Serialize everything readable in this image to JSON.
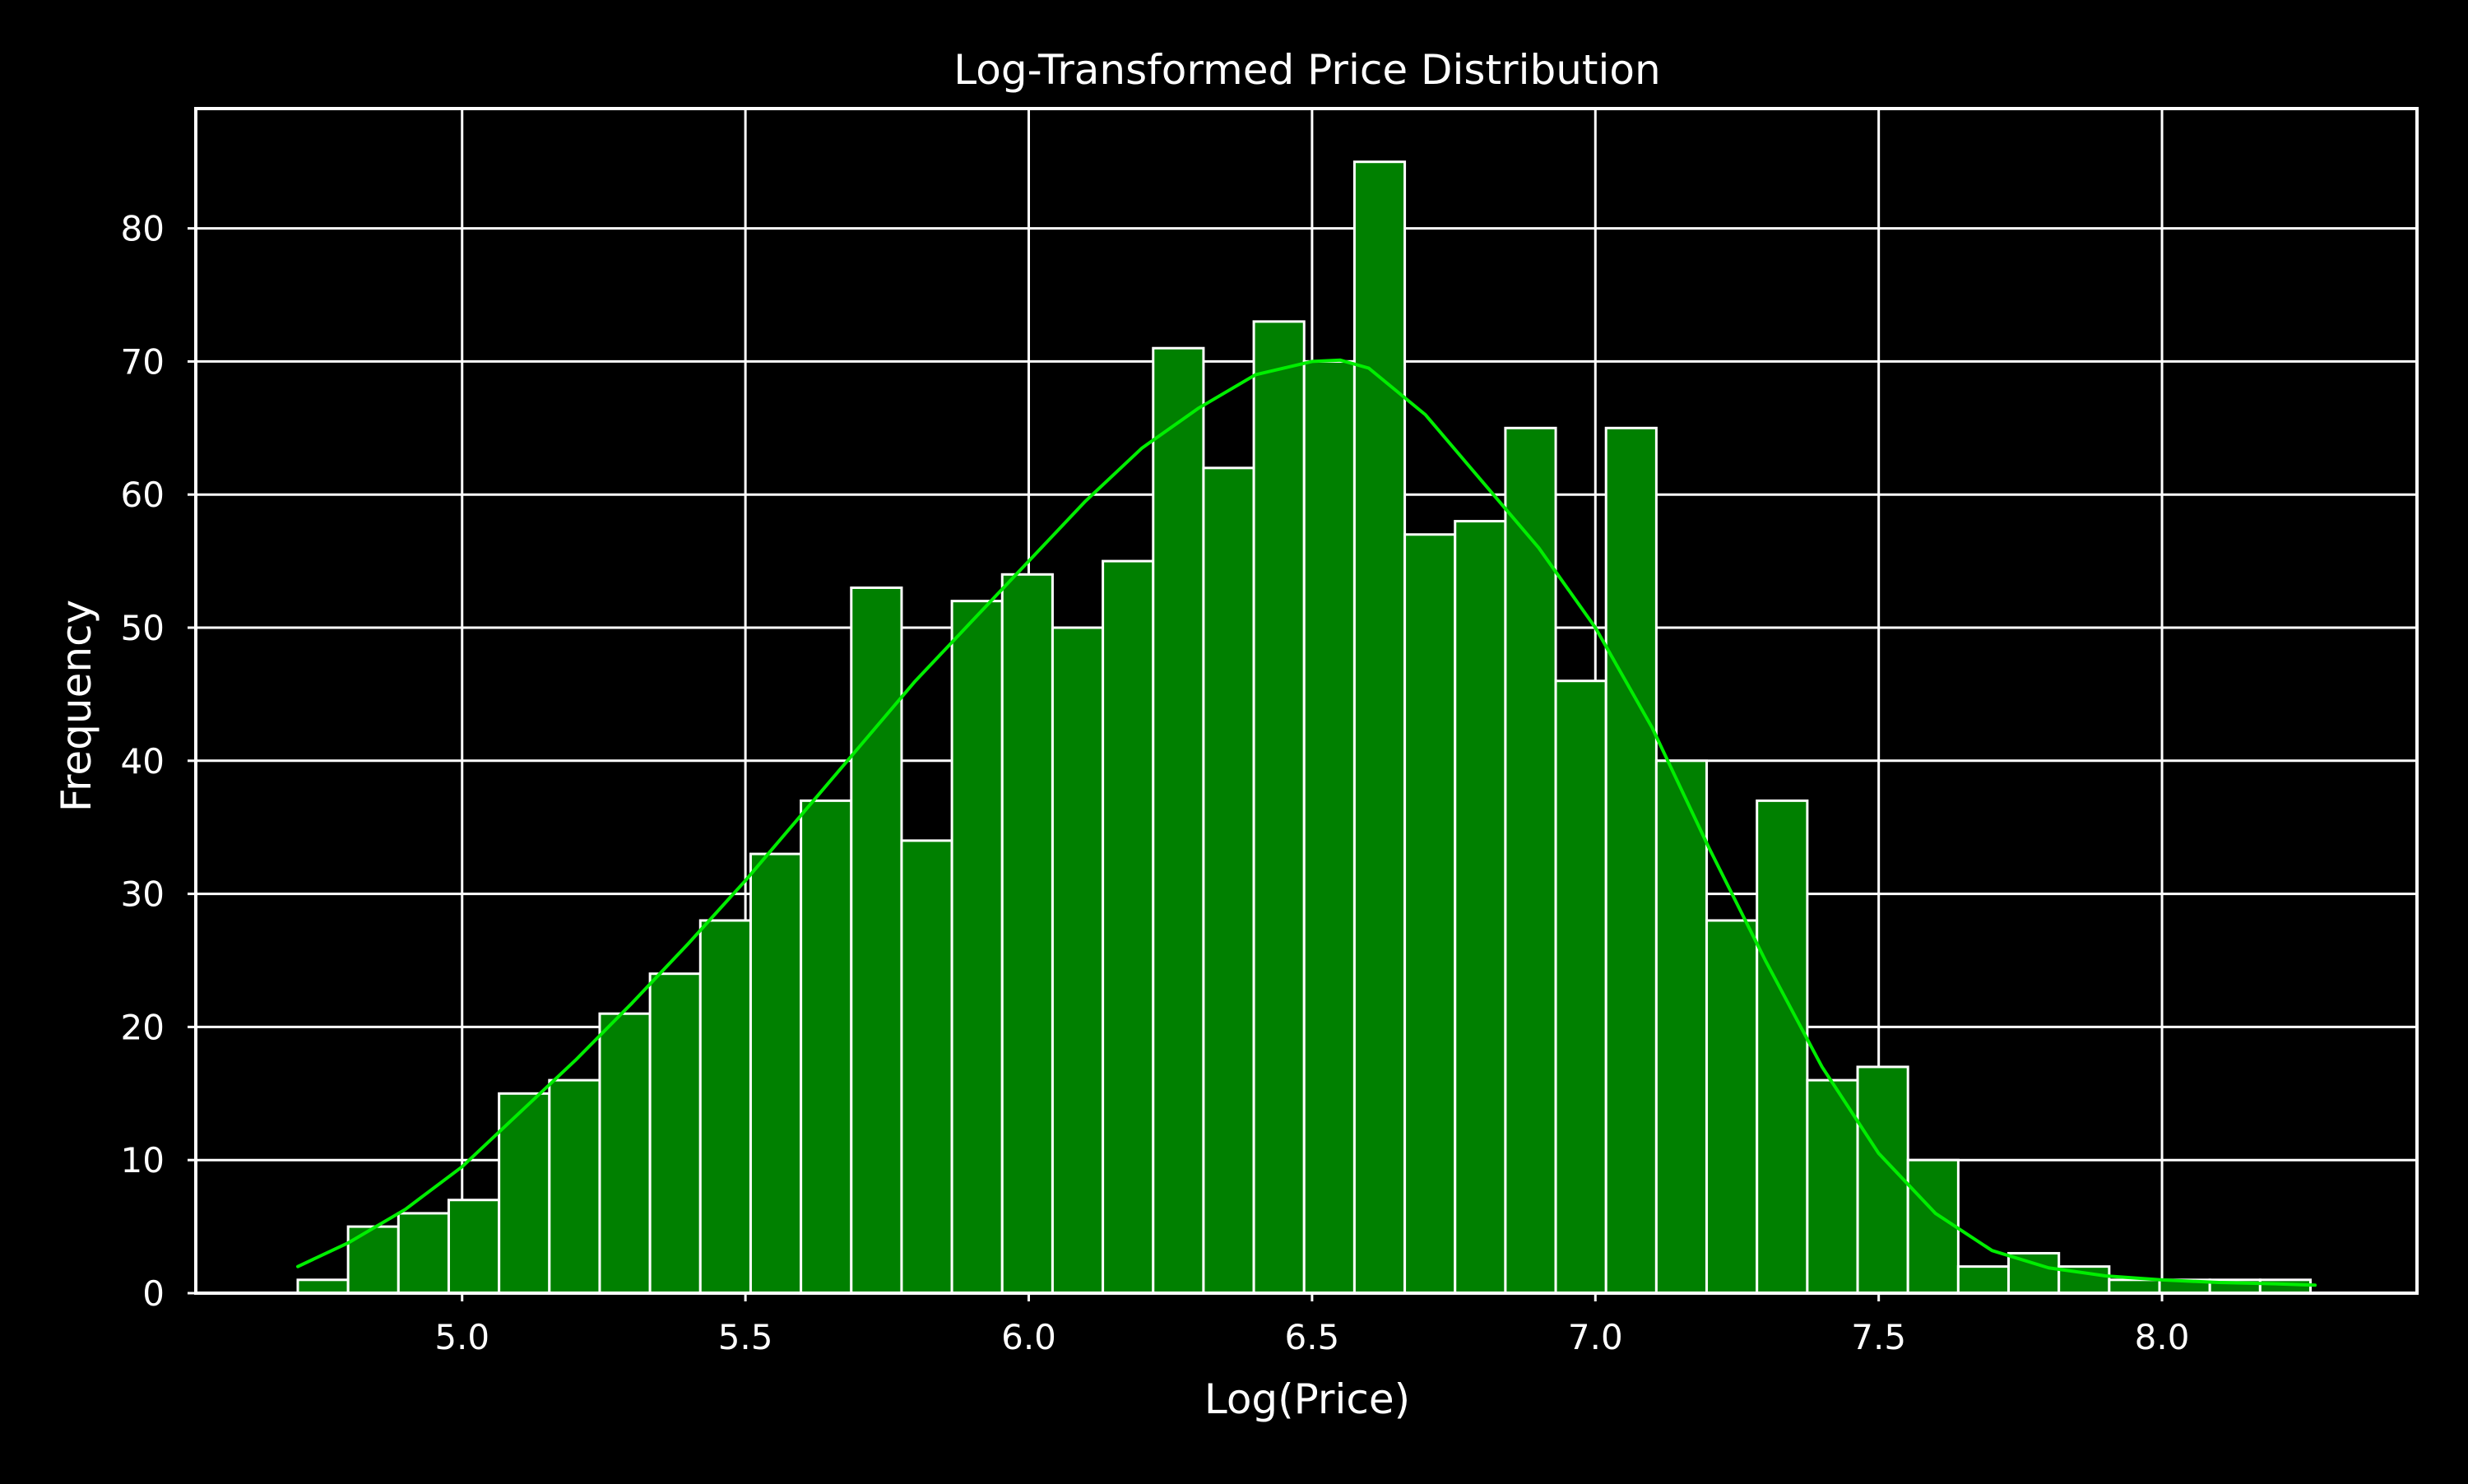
{
  "chart_data": {
    "type": "bar",
    "title": "Log-Transformed Price Distribution",
    "xlabel": "Log(Price)",
    "ylabel": "Frequency",
    "xlim": [
      4.53,
      8.45
    ],
    "ylim": [
      0,
      89
    ],
    "xticks": [
      5.0,
      5.5,
      6.0,
      6.5,
      7.0,
      7.5,
      8.0
    ],
    "xtick_labels": [
      "5.0",
      "5.5",
      "6.0",
      "6.5",
      "7.0",
      "7.5",
      "8.0"
    ],
    "yticks": [
      0,
      10,
      20,
      30,
      40,
      50,
      60,
      70,
      80
    ],
    "ytick_labels": [
      "0",
      "10",
      "20",
      "30",
      "40",
      "50",
      "60",
      "70",
      "80"
    ],
    "grid": true,
    "bin_start": 4.71,
    "bin_width": 0.0888,
    "values": [
      1,
      5,
      6,
      7,
      15,
      16,
      21,
      24,
      28,
      33,
      37,
      53,
      34,
      52,
      54,
      50,
      55,
      71,
      62,
      73,
      70,
      85,
      57,
      58,
      65,
      46,
      65,
      40,
      28,
      37,
      16,
      17,
      10,
      2,
      3,
      2,
      1,
      1,
      1,
      1
    ],
    "kde": {
      "x": [
        4.71,
        4.8,
        4.9,
        5.0,
        5.1,
        5.2,
        5.3,
        5.4,
        5.5,
        5.6,
        5.7,
        5.8,
        5.9,
        6.0,
        6.1,
        6.2,
        6.3,
        6.4,
        6.5,
        6.55,
        6.6,
        6.7,
        6.8,
        6.9,
        7.0,
        7.1,
        7.2,
        7.3,
        7.4,
        7.5,
        7.6,
        7.7,
        7.8,
        7.9,
        8.0,
        8.1,
        8.2,
        8.27
      ],
      "y": [
        2.0,
        3.8,
        6.3,
        9.5,
        13.5,
        17.5,
        21.8,
        26.3,
        31.0,
        36.0,
        41.0,
        46.0,
        50.5,
        55.0,
        59.5,
        63.5,
        66.5,
        69.0,
        70.0,
        70.1,
        69.5,
        66.0,
        61.0,
        56.0,
        50.0,
        42.5,
        33.5,
        25.0,
        17.0,
        10.5,
        6.0,
        3.2,
        1.9,
        1.3,
        1.0,
        0.8,
        0.7,
        0.6
      ]
    },
    "colors": {
      "background": "#000000",
      "bar_fill": "#008000",
      "bar_edge": "#ffffff",
      "kde_line": "#00ee00",
      "grid": "#ffffff",
      "text": "#ffffff"
    }
  }
}
